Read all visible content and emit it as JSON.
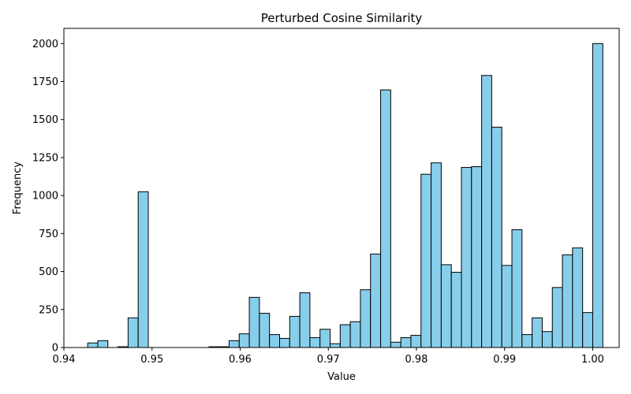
{
  "chart_data": {
    "type": "bar",
    "title": "Perturbed Cosine Similarity",
    "xlabel": "Value",
    "ylabel": "Frequency",
    "xlim": [
      0.94,
      1.003
    ],
    "ylim": [
      0,
      2100
    ],
    "xticks": [
      0.94,
      0.95,
      0.96,
      0.97,
      0.98,
      0.99,
      1.0
    ],
    "xtick_labels": [
      "0.94",
      "0.95",
      "0.96",
      "0.97",
      "0.98",
      "0.99",
      "1.00"
    ],
    "yticks": [
      0,
      250,
      500,
      750,
      1000,
      1250,
      1500,
      1750,
      2000
    ],
    "ytick_labels": [
      "0",
      "250",
      "500",
      "750",
      "1000",
      "1250",
      "1500",
      "1750",
      "2000"
    ],
    "bin_start": 0.9427,
    "bin_width": 0.001146,
    "values": [
      30,
      45,
      0,
      5,
      195,
      1025,
      0,
      0,
      0,
      0,
      0,
      0,
      5,
      5,
      45,
      90,
      330,
      225,
      85,
      60,
      205,
      360,
      65,
      120,
      25,
      150,
      170,
      380,
      615,
      1695,
      35,
      65,
      80,
      1140,
      1215,
      545,
      495,
      1185,
      1190,
      1790,
      1450,
      540,
      775,
      85,
      195,
      105,
      395,
      610,
      655,
      230,
      2000
    ],
    "bar_color": "#87ceeb",
    "edge_color": "#000000",
    "grid": false
  }
}
